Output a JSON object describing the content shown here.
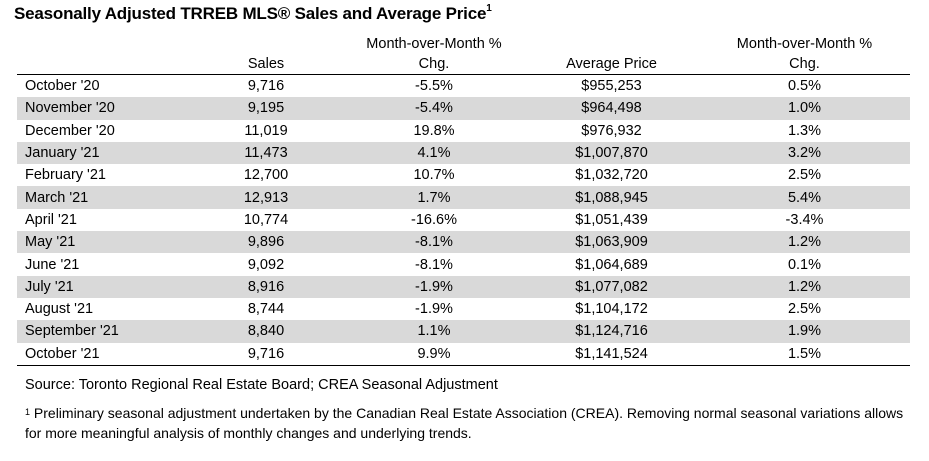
{
  "title": {
    "text": "Seasonally Adjusted TRREB MLS® Sales and Average Price",
    "superscript": "1"
  },
  "columns": {
    "sales": "Sales",
    "sales_chg_line1": "Month-over-Month %",
    "sales_chg_line2": "Chg.",
    "avg_price": "Average Price",
    "price_chg_line1": "Month-over-Month %",
    "price_chg_line2": "Chg."
  },
  "rows": [
    {
      "month": "October '20",
      "sales": "9,716",
      "sales_chg": "-5.5%",
      "avg_price": "$955,253",
      "price_chg": "0.5%"
    },
    {
      "month": "November '20",
      "sales": "9,195",
      "sales_chg": "-5.4%",
      "avg_price": "$964,498",
      "price_chg": "1.0%"
    },
    {
      "month": "December '20",
      "sales": "11,019",
      "sales_chg": "19.8%",
      "avg_price": "$976,932",
      "price_chg": "1.3%"
    },
    {
      "month": "January '21",
      "sales": "11,473",
      "sales_chg": "4.1%",
      "avg_price": "$1,007,870",
      "price_chg": "3.2%"
    },
    {
      "month": "February '21",
      "sales": "12,700",
      "sales_chg": "10.7%",
      "avg_price": "$1,032,720",
      "price_chg": "2.5%"
    },
    {
      "month": "March '21",
      "sales": "12,913",
      "sales_chg": "1.7%",
      "avg_price": "$1,088,945",
      "price_chg": "5.4%"
    },
    {
      "month": "April '21",
      "sales": "10,774",
      "sales_chg": "-16.6%",
      "avg_price": "$1,051,439",
      "price_chg": "-3.4%"
    },
    {
      "month": "May '21",
      "sales": "9,896",
      "sales_chg": "-8.1%",
      "avg_price": "$1,063,909",
      "price_chg": "1.2%"
    },
    {
      "month": "June '21",
      "sales": "9,092",
      "sales_chg": "-8.1%",
      "avg_price": "$1,064,689",
      "price_chg": "0.1%"
    },
    {
      "month": "July '21",
      "sales": "8,916",
      "sales_chg": "-1.9%",
      "avg_price": "$1,077,082",
      "price_chg": "1.2%"
    },
    {
      "month": "August '21",
      "sales": "8,744",
      "sales_chg": "-1.9%",
      "avg_price": "$1,104,172",
      "price_chg": "2.5%"
    },
    {
      "month": "September '21",
      "sales": "8,840",
      "sales_chg": "1.1%",
      "avg_price": "$1,124,716",
      "price_chg": "1.9%"
    },
    {
      "month": "October '21",
      "sales": "9,716",
      "sales_chg": "9.9%",
      "avg_price": "$1,141,524",
      "price_chg": "1.5%"
    }
  ],
  "row_shade_color": "#d9d9d9",
  "source": "Source: Toronto Regional Real Estate Board; CREA Seasonal Adjustment",
  "footnote": {
    "marker": "1",
    "text": " Preliminary seasonal adjustment undertaken by the Canadian Real Estate Association (CREA).  Removing normal seasonal variations allows for more meaningful analysis of monthly changes and underlying trends."
  }
}
